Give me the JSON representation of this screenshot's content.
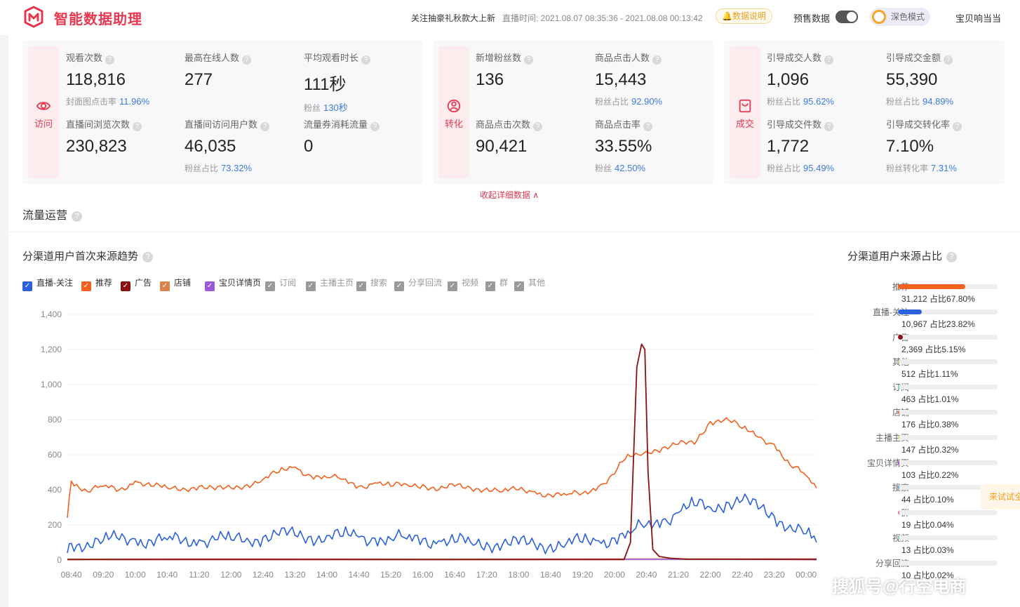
{
  "header": {
    "app_title": "智能数据助理",
    "promo": "关注抽豪礼秋款大上新",
    "live_time": "直播时间: 2021.08.07 08:35:36 - 2021.08.08 00:13:42",
    "data_desc": "数据说明",
    "presale_label": "预售数据",
    "dark_mode_label": "深色模式",
    "shop_name": "宝贝响当当"
  },
  "cards": {
    "visit": {
      "tag": "访问",
      "views_label": "观看次数",
      "views": "118,816",
      "views_sub_label": "封面图点击率",
      "views_sub_pct": "11.96%",
      "peak_label": "最高在线人数",
      "peak": "277",
      "avg_label": "平均观看时长",
      "avg": "111秒",
      "avg_sub_label": "粉丝",
      "avg_sub_pct": "130秒",
      "browse_label": "直播间浏览次数",
      "browse": "230,823",
      "users_label": "直播间访问用户数",
      "users": "46,035",
      "users_sub_label": "粉丝占比",
      "users_sub_pct": "73.32%",
      "coupon_label": "流量券消耗流量",
      "coupon": "0"
    },
    "convert": {
      "tag": "转化",
      "fans_label": "新增粉丝数",
      "fans": "136",
      "clickers_label": "商品点击人数",
      "clickers": "15,443",
      "clickers_sub_label": "粉丝占比",
      "clickers_sub_pct": "92.90%",
      "clicks_label": "商品点击次数",
      "clicks": "90,421",
      "ctr_label": "商品点击率",
      "ctr": "33.55%",
      "ctr_sub_label": "粉丝",
      "ctr_sub_pct": "42.50%"
    },
    "deal": {
      "tag": "成交",
      "buyers_label": "引导成交人数",
      "buyers": "1,096",
      "buyers_sub_label": "粉丝占比",
      "buyers_sub_pct": "95.62%",
      "amount_label": "引导成交金额",
      "amount": "55,390",
      "amount_sub_label": "粉丝占比",
      "amount_sub_pct": "94.89%",
      "items_label": "引导成交件数",
      "items": "1,772",
      "items_sub_label": "粉丝占比",
      "items_sub_pct": "95.49%",
      "rate_label": "引导成交转化率",
      "rate": "7.10%",
      "rate_sub_label": "粉丝转化率",
      "rate_sub_pct": "7.31%"
    },
    "collapse_link": "收起详细数据 ∧"
  },
  "traffic": {
    "section_title": "流量运营",
    "trend_title": "分渠道用户首次来源趋势",
    "ratio_title": "分渠道用户来源占比",
    "legend": [
      {
        "label": "直播-关注",
        "color": "#2b62d9",
        "checked": true
      },
      {
        "label": "推荐",
        "color": "#f0621e",
        "checked": true
      },
      {
        "label": "广告",
        "color": "#8b1010",
        "checked": true
      },
      {
        "label": "店铺",
        "color": "#d9834b",
        "checked": true
      },
      {
        "label": "宝贝详情页",
        "color": "#9b59d9",
        "checked": true
      },
      {
        "label": "订阅",
        "color": "#9a9a9a",
        "checked": false
      },
      {
        "label": "主播主页",
        "color": "#9a9a9a",
        "checked": false
      },
      {
        "label": "搜索",
        "color": "#9a9a9a",
        "checked": false
      },
      {
        "label": "分享回流",
        "color": "#9a9a9a",
        "checked": false
      },
      {
        "label": "视频",
        "color": "#9a9a9a",
        "checked": false
      },
      {
        "label": "群",
        "color": "#9a9a9a",
        "checked": false
      },
      {
        "label": "其他",
        "color": "#9a9a9a",
        "checked": false
      }
    ],
    "ratios": [
      {
        "label": "推荐",
        "value": "31,212 占比67.80%",
        "pct": 67.8,
        "color": "#f0621e"
      },
      {
        "label": "直播-关注",
        "value": "10,967 占比23.82%",
        "pct": 23.82,
        "color": "#2b62d9"
      },
      {
        "label": "广告",
        "value": "2,369 占比5.15%",
        "pct": 5.15,
        "color": "#8b1010"
      },
      {
        "label": "其他",
        "value": "512 占比1.11%",
        "pct": 1.11,
        "color": "#b8d97a"
      },
      {
        "label": "订阅",
        "value": "463 占比1.01%",
        "pct": 1.01,
        "color": "#6cd9b0"
      },
      {
        "label": "店铺",
        "value": "176 占比0.38%",
        "pct": 0.38,
        "color": "#d9834b"
      },
      {
        "label": "主播主页",
        "value": "147 占比0.32%",
        "pct": 0.32,
        "color": "#e8d07a"
      },
      {
        "label": "宝贝详情页",
        "value": "103 占比0.22%",
        "pct": 0.22,
        "color": "#9b59d9"
      },
      {
        "label": "搜索",
        "value": "44 占比0.10%",
        "pct": 0.1,
        "color": "#7ab0e8"
      },
      {
        "label": "群",
        "value": "19 占比0.04%",
        "pct": 0.04,
        "color": "#e87aa0"
      },
      {
        "label": "视频",
        "value": "13 占比0.03%",
        "pct": 0.03,
        "color": "#7ae8d0"
      },
      {
        "label": "分享回流",
        "value": "10 占比0.02%",
        "pct": 0.02,
        "color": "#c0c0c0"
      }
    ],
    "side_tab": "来试试全",
    "watermark": "搜狐号@行空电商"
  },
  "chart_data": {
    "type": "line",
    "ylim": [
      0,
      1400
    ],
    "y_ticks": [
      "0",
      "200",
      "400",
      "600",
      "800",
      "1,000",
      "1,200",
      "1,400"
    ],
    "x_ticks": [
      "08:40",
      "09:20",
      "10:00",
      "10:40",
      "11:20",
      "12:00",
      "12:40",
      "13:20",
      "14:00",
      "14:40",
      "15:20",
      "16:00",
      "16:40",
      "17:20",
      "18:00",
      "18:40",
      "19:20",
      "20:00",
      "20:40",
      "21:20",
      "22:00",
      "22:40",
      "23:20",
      "00:00"
    ],
    "x_range": [
      "08:35",
      "00:13"
    ],
    "series": [
      {
        "name": "推荐",
        "color": "#f0621e",
        "x": [
          "08:35",
          "08:40",
          "09:00",
          "09:20",
          "09:40",
          "10:00",
          "10:20",
          "10:40",
          "11:00",
          "11:20",
          "11:40",
          "12:00",
          "12:20",
          "12:40",
          "13:00",
          "13:20",
          "13:40",
          "14:00",
          "14:20",
          "14:40",
          "15:00",
          "15:20",
          "15:40",
          "16:00",
          "16:20",
          "16:40",
          "17:00",
          "17:20",
          "17:40",
          "18:00",
          "18:20",
          "18:40",
          "19:00",
          "19:20",
          "19:40",
          "20:00",
          "20:10",
          "20:20",
          "20:30",
          "20:40",
          "21:00",
          "21:20",
          "21:40",
          "22:00",
          "22:20",
          "22:40",
          "23:00",
          "23:20",
          "23:40",
          "00:00",
          "00:13"
        ],
        "y": [
          240,
          450,
          390,
          420,
          400,
          450,
          420,
          410,
          410,
          420,
          400,
          410,
          430,
          460,
          500,
          530,
          480,
          470,
          460,
          420,
          440,
          420,
          430,
          430,
          400,
          420,
          410,
          410,
          390,
          400,
          390,
          370,
          370,
          380,
          420,
          490,
          560,
          590,
          600,
          620,
          640,
          660,
          660,
          790,
          810,
          750,
          700,
          660,
          540,
          480,
          410
        ]
      },
      {
        "name": "直播-关注",
        "color": "#2b62d9",
        "x": [
          "08:35",
          "08:40",
          "09:00",
          "09:20",
          "09:40",
          "10:00",
          "10:20",
          "10:40",
          "11:00",
          "11:20",
          "11:40",
          "12:00",
          "12:20",
          "12:40",
          "13:00",
          "13:20",
          "13:40",
          "14:00",
          "14:20",
          "14:40",
          "15:00",
          "15:20",
          "15:40",
          "16:00",
          "16:20",
          "16:40",
          "17:00",
          "17:20",
          "17:40",
          "18:00",
          "18:20",
          "18:40",
          "19:00",
          "19:20",
          "19:40",
          "20:00",
          "20:20",
          "20:40",
          "21:00",
          "21:20",
          "21:40",
          "22:00",
          "22:20",
          "22:40",
          "23:00",
          "23:20",
          "23:40",
          "00:00",
          "00:13"
        ],
        "y": [
          40,
          95,
          100,
          110,
          115,
          120,
          110,
          115,
          110,
          115,
          115,
          115,
          125,
          130,
          140,
          140,
          135,
          140,
          135,
          130,
          125,
          120,
          120,
          120,
          110,
          100,
          100,
          100,
          90,
          90,
          90,
          90,
          95,
          100,
          110,
          125,
          150,
          200,
          230,
          270,
          310,
          300,
          330,
          340,
          290,
          250,
          200,
          150,
          100
        ]
      },
      {
        "name": "广告",
        "color": "#8b1010",
        "x": [
          "08:35",
          "20:12",
          "20:20",
          "20:28",
          "20:34",
          "20:38",
          "20:42",
          "20:48",
          "20:56",
          "21:10",
          "21:30",
          "00:13"
        ],
        "y": [
          3,
          3,
          100,
          1100,
          1230,
          1200,
          500,
          60,
          20,
          10,
          5,
          3
        ]
      },
      {
        "name": "店铺",
        "color": "#d9834b",
        "x": [
          "08:35",
          "12:00",
          "16:00",
          "20:00",
          "00:13"
        ],
        "y": [
          5,
          6,
          5,
          6,
          7
        ]
      },
      {
        "name": "宝贝详情页",
        "color": "#9b59d9",
        "x": [
          "08:35",
          "12:00",
          "16:00",
          "20:00",
          "00:13"
        ],
        "y": [
          3,
          4,
          3,
          4,
          5
        ]
      }
    ]
  }
}
